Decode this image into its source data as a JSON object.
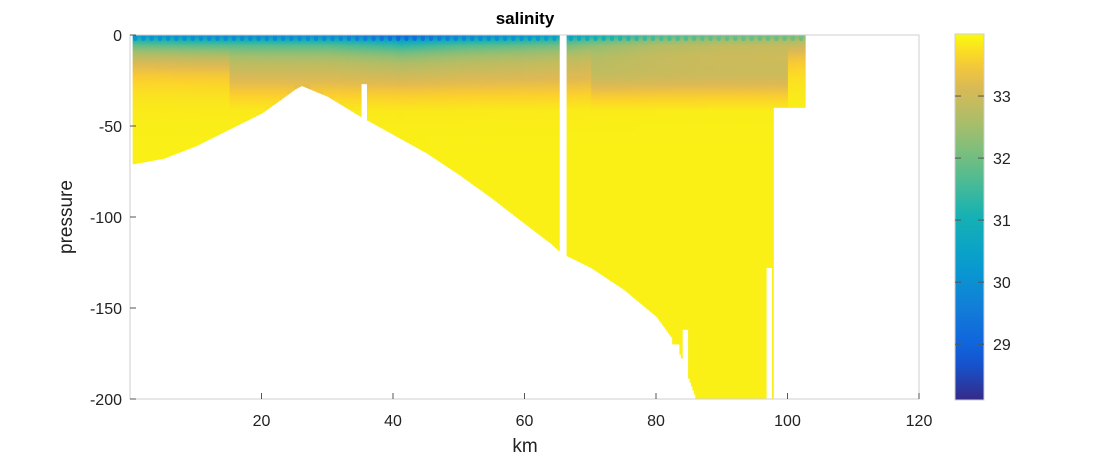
{
  "chart_data": {
    "type": "heatmap",
    "title": "salinity",
    "xlabel": "km",
    "ylabel": "pressure",
    "xlim": [
      0,
      120
    ],
    "ylim": [
      -200,
      0
    ],
    "xticks": [
      20,
      40,
      60,
      80,
      100,
      120
    ],
    "yticks": [
      0,
      -50,
      -100,
      -150,
      -200
    ],
    "colorbar": {
      "range": [
        28.1,
        34.0
      ],
      "ticks": [
        29,
        30,
        31,
        32,
        33
      ],
      "colormap": "parula"
    },
    "bottom_depth_profile": {
      "x": [
        0.5,
        5,
        10,
        15,
        20,
        25,
        26,
        30,
        35,
        40,
        45,
        50,
        55,
        60,
        64,
        65.5,
        70,
        75,
        80,
        83,
        86,
        90,
        95,
        97.5
      ],
      "y": [
        -71,
        -68,
        -61,
        -52,
        -43,
        -30,
        -28,
        -34,
        -45,
        -55,
        -65,
        -77,
        -90,
        -104,
        -115,
        -120,
        -128,
        -140,
        -155,
        -170,
        -200,
        -200,
        -200,
        -200
      ]
    },
    "cast_ends": [
      {
        "x": 35.5,
        "y": -27
      },
      {
        "x": 65.8,
        "y": -5
      },
      {
        "x": 82.9,
        "y": -170
      },
      {
        "x": 84.3,
        "y": -162
      },
      {
        "x": 88.5,
        "y": -200
      },
      {
        "x": 96.2,
        "y": -200
      },
      {
        "x": 97.0,
        "y": -128
      },
      {
        "x": 99.4,
        "y": -28
      },
      {
        "x": 100.7,
        "y": -33
      },
      {
        "x": 101.8,
        "y": -37
      },
      {
        "x": 102.5,
        "y": -40
      }
    ],
    "surface_salinity": {
      "x": [
        0,
        10,
        20,
        30,
        40,
        41,
        50,
        60,
        66,
        70,
        80,
        90,
        100,
        102.5
      ],
      "values": [
        30.3,
        30.1,
        30.0,
        30.0,
        29.4,
        29.2,
        29.9,
        30.3,
        30.6,
        31.0,
        31.7,
        32.0,
        32.1,
        32.2
      ]
    },
    "deep_salinity": 33.9
  }
}
